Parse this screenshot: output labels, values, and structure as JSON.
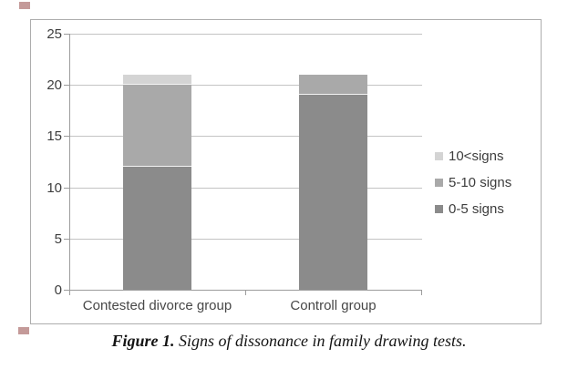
{
  "figure": {
    "caption_label": "Figure 1.",
    "caption_text": " Signs of dissonance in family drawing tests."
  },
  "chart_data": {
    "type": "bar",
    "stacked": true,
    "categories": [
      "Contested divorce group",
      "Controll group"
    ],
    "series": [
      {
        "name": "0-5 signs",
        "values": [
          12,
          19
        ],
        "color": "#8b8b8b"
      },
      {
        "name": "5-10 signs",
        "values": [
          8,
          2
        ],
        "color": "#a9a9a9"
      },
      {
        "name": "10<signs",
        "values": [
          1,
          0
        ],
        "color": "#d4d4d4"
      }
    ],
    "ylim": [
      0,
      25
    ],
    "yticks": [
      0,
      5,
      10,
      15,
      20,
      25
    ],
    "grid": true,
    "legend_position": "right",
    "legend_order": [
      "10<signs",
      "5-10 signs",
      "0-5 signs"
    ]
  },
  "colors": {
    "grid": "#c4c4c4",
    "axis": "#9c9c9c",
    "frame_border": "#adadad",
    "segment_dark": "#8b8b8b",
    "segment_medium": "#a9a9a9",
    "segment_light": "#d4d4d4",
    "text": "#3d3d3d",
    "artifact_red": "#b5817f"
  }
}
